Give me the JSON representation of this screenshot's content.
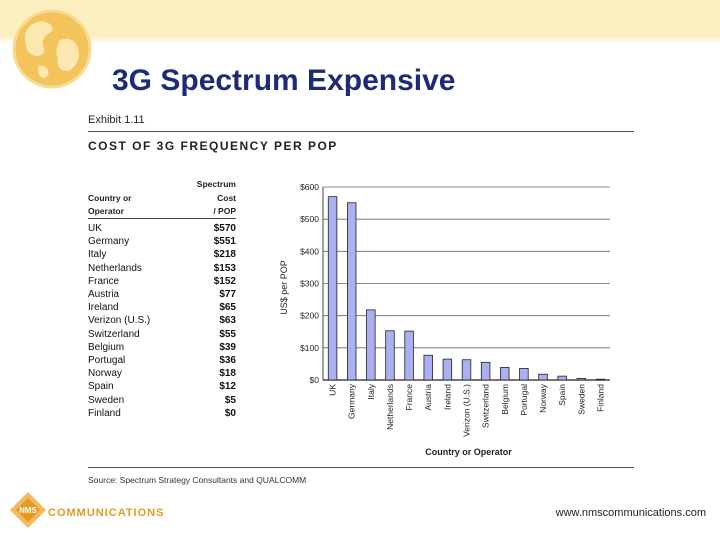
{
  "slide": {
    "title": "3G Spectrum Expensive",
    "exhibit": "Exhibit 1.11",
    "source": "Source: Spectrum Strategy Consultants and QUALCOMM",
    "footer_url": "www.nmscommunications.com",
    "logo_text": "COMMUNICATIONS",
    "logo_mark": "NMS"
  },
  "table": {
    "col1_header_line1": "Country or",
    "col1_header_line2": "Operator",
    "col2_header_line1": "Spectrum",
    "col2_header_line2": "Cost",
    "col2_header_line3": "/ POP",
    "rows": [
      {
        "country": "UK",
        "value": "$570"
      },
      {
        "country": "Germany",
        "value": "$551"
      },
      {
        "country": "Italy",
        "value": "$218"
      },
      {
        "country": "Netherlands",
        "value": "$153"
      },
      {
        "country": "France",
        "value": "$152"
      },
      {
        "country": "Austria",
        "value": "$77"
      },
      {
        "country": "Ireland",
        "value": "$65"
      },
      {
        "country": "Verizon (U.S.)",
        "value": "$63"
      },
      {
        "country": "Switzerland",
        "value": "$55"
      },
      {
        "country": "Belgium",
        "value": "$39"
      },
      {
        "country": "Portugal",
        "value": "$36"
      },
      {
        "country": "Norway",
        "value": "$18"
      },
      {
        "country": "Spain",
        "value": "$12"
      },
      {
        "country": "Sweden",
        "value": "$5"
      },
      {
        "country": "Finland",
        "value": "$0"
      }
    ]
  },
  "chart_data": {
    "type": "bar",
    "title": "COST OF 3G FREQUENCY PER POP",
    "xlabel": "Country or Operator",
    "ylabel": "US$ per POP",
    "categories": [
      "UK",
      "Germany",
      "Italy",
      "Netherlands",
      "France",
      "Austria",
      "Ireland",
      "Verizon (U.S.)",
      "Switzerland",
      "Belgium",
      "Portugal",
      "Norway",
      "Spain",
      "Sweden",
      "Finland"
    ],
    "values": [
      570,
      551,
      218,
      153,
      152,
      77,
      65,
      63,
      55,
      39,
      36,
      18,
      12,
      5,
      0
    ],
    "ylim": [
      0,
      600
    ],
    "yticks": [
      0,
      100,
      200,
      300,
      400,
      500,
      600
    ],
    "ytick_labels": [
      "$0",
      "$100",
      "$200",
      "$300",
      "$400",
      "$500",
      "$600"
    ],
    "grid": true,
    "bar_color": "#aab0f0",
    "bar_edge": "#222222"
  },
  "colors": {
    "title": "#1c2a78",
    "top_band": "#fcefc0",
    "logo_orange": "#e39a1e"
  },
  "icons": {
    "globe": "globe-icon",
    "logo": "nms-logo-icon"
  }
}
